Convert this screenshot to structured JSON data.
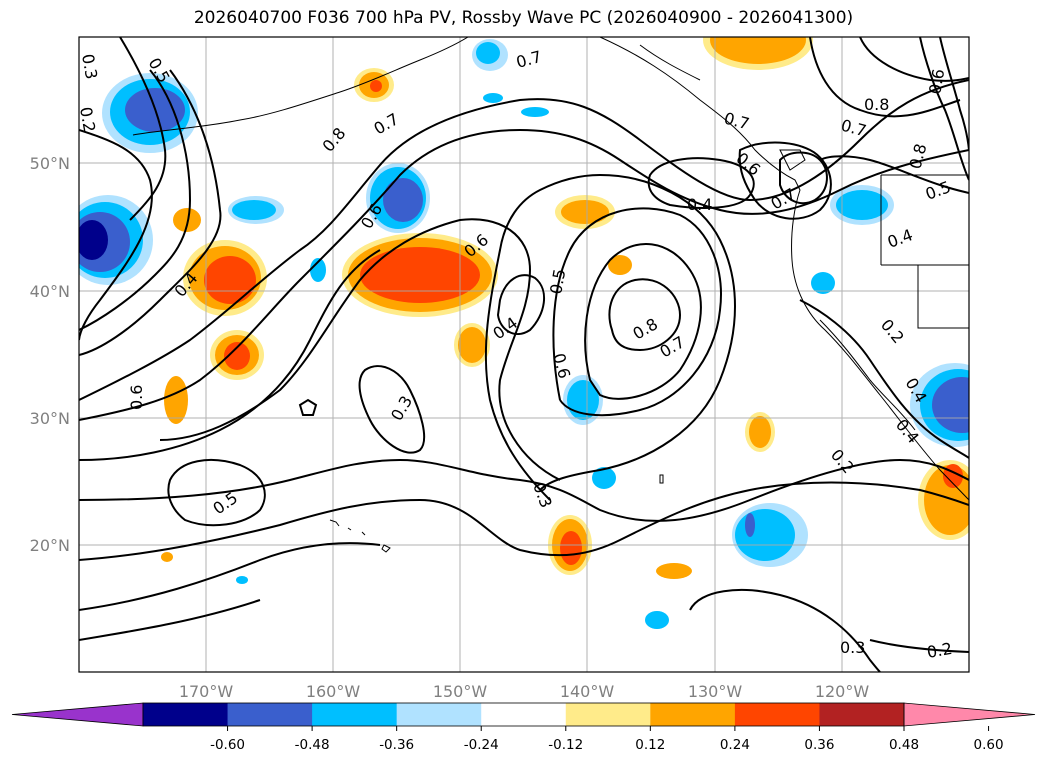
{
  "title": "2026040700 F036 700 hPa PV, Rossby Wave PC (2026040900 - 2026041300)",
  "lat_labels": [
    "50°N",
    "40°N",
    "30°N",
    "20°N"
  ],
  "lon_labels": [
    "170°W",
    "160°W",
    "150°W",
    "140°W",
    "130°W",
    "120°W"
  ],
  "contour_labels": [
    "0.3",
    "0.2",
    "0.5",
    "0.7",
    "0.8",
    "0.7",
    "0.4",
    "0.6",
    "0.6",
    "0.6",
    "0.4",
    "0.6",
    "0.3",
    "0.5",
    "0.8",
    "0.7",
    "0.4",
    "0.6",
    "0.7",
    "0.7",
    "0.8",
    "0.7",
    "0.6",
    "0.8",
    "0.5",
    "0.4",
    "0.2",
    "0.4",
    "0.4",
    "0.2",
    "0.3",
    "0.5",
    "0.3",
    "0.2"
  ],
  "colorbar": {
    "tick_labels": [
      "-0.60",
      "-0.48",
      "-0.36",
      "-0.24",
      "-0.12",
      "0.12",
      "0.24",
      "0.36",
      "0.48",
      "0.60"
    ],
    "colors": [
      "#9933cc",
      "#00008b",
      "#3a5fcd",
      "#00bfff",
      "#b0e2ff",
      "#ffffff",
      "#ffeb8a",
      "#ffa500",
      "#ff4500",
      "#b22222",
      "#ff88aa"
    ]
  }
}
